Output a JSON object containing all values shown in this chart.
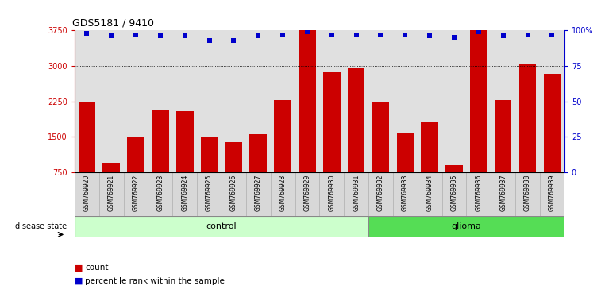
{
  "title": "GDS5181 / 9410",
  "samples": [
    "GSM769920",
    "GSM769921",
    "GSM769922",
    "GSM769923",
    "GSM769924",
    "GSM769925",
    "GSM769926",
    "GSM769927",
    "GSM769928",
    "GSM769929",
    "GSM769930",
    "GSM769931",
    "GSM769932",
    "GSM769933",
    "GSM769934",
    "GSM769935",
    "GSM769936",
    "GSM769937",
    "GSM769938",
    "GSM769939"
  ],
  "counts": [
    2230,
    960,
    1510,
    2060,
    2050,
    1510,
    1390,
    1560,
    2280,
    3750,
    2860,
    2960,
    2220,
    1590,
    1820,
    900,
    3750,
    2280,
    3050,
    2840
  ],
  "percentile_values": [
    98,
    96,
    97,
    96,
    96,
    93,
    93,
    96,
    97,
    99,
    97,
    97,
    97,
    97,
    96,
    95,
    99,
    96,
    97,
    97
  ],
  "control_count": 12,
  "glioma_count": 8,
  "bar_color": "#cc0000",
  "dot_color": "#0000cc",
  "ylim_left": [
    750,
    3750
  ],
  "ylim_right": [
    0,
    100
  ],
  "yticks_left": [
    750,
    1500,
    2250,
    3000,
    3750
  ],
  "yticks_right": [
    0,
    25,
    50,
    75,
    100
  ],
  "ytick_labels_right": [
    "0",
    "25",
    "50",
    "75",
    "100%"
  ],
  "grid_values": [
    1500,
    2250,
    3000
  ],
  "control_color": "#ccffcc",
  "glioma_color": "#55dd55",
  "legend_count_label": "count",
  "legend_pct_label": "percentile rank within the sample",
  "disease_state_label": "disease state"
}
